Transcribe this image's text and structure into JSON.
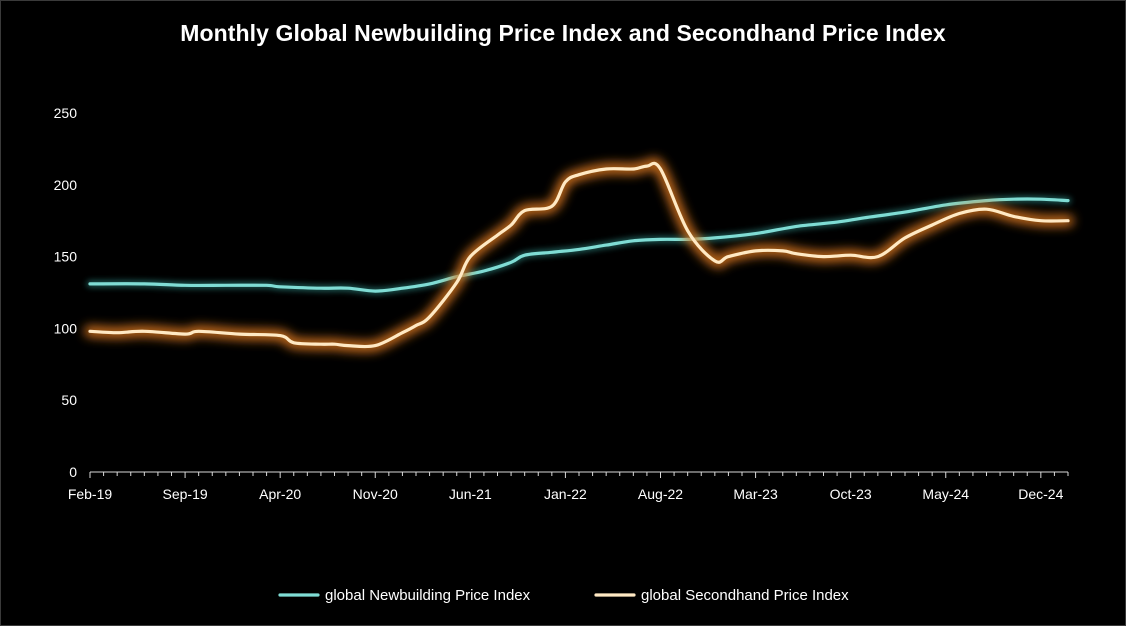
{
  "chart_data": {
    "type": "line",
    "title": "Monthly Global Newbuilding Price Index and Secondhand Price Index",
    "xlabel": "",
    "ylabel": "",
    "ylim": [
      0,
      250
    ],
    "y_ticks": [
      "0",
      "50",
      "100",
      "150",
      "200",
      "250"
    ],
    "x_tick_labels": [
      "Feb-19",
      "Sep-19",
      "Apr-20",
      "Nov-20",
      "Jun-21",
      "Jan-22",
      "Aug-22",
      "Mar-23",
      "Oct-23",
      "May-24",
      "Dec-24"
    ],
    "legend_position": "bottom",
    "grid": false,
    "series": [
      {
        "name": "global Newbuilding Price Index",
        "color": "#7fdcd4",
        "points": [
          [
            "2019-02",
            131
          ],
          [
            "2019-06",
            131
          ],
          [
            "2019-09",
            130
          ],
          [
            "2019-12",
            130
          ],
          [
            "2020-03",
            130
          ],
          [
            "2020-04",
            129
          ],
          [
            "2020-07",
            128
          ],
          [
            "2020-09",
            128
          ],
          [
            "2020-11",
            126
          ],
          [
            "2021-01",
            128
          ],
          [
            "2021-03",
            131
          ],
          [
            "2021-05",
            136
          ],
          [
            "2021-07",
            140
          ],
          [
            "2021-09",
            146
          ],
          [
            "2021-10",
            151
          ],
          [
            "2021-12",
            153
          ],
          [
            "2022-02",
            155
          ],
          [
            "2022-04",
            158
          ],
          [
            "2022-06",
            161
          ],
          [
            "2022-08",
            162
          ],
          [
            "2022-10",
            162
          ],
          [
            "2022-12",
            163
          ],
          [
            "2023-03",
            166
          ],
          [
            "2023-06",
            171
          ],
          [
            "2023-09",
            174
          ],
          [
            "2023-11",
            177
          ],
          [
            "2024-02",
            181
          ],
          [
            "2024-05",
            186
          ],
          [
            "2024-08",
            189
          ],
          [
            "2024-10",
            190
          ],
          [
            "2024-12",
            190
          ],
          [
            "2025-02",
            189
          ]
        ]
      },
      {
        "name": "global Secondhand Price Index",
        "color": "#ffe9c4",
        "points": [
          [
            "2019-02",
            98
          ],
          [
            "2019-04",
            97
          ],
          [
            "2019-06",
            98
          ],
          [
            "2019-09",
            96
          ],
          [
            "2019-10",
            98
          ],
          [
            "2020-01",
            96
          ],
          [
            "2020-04",
            95
          ],
          [
            "2020-05",
            90
          ],
          [
            "2020-07",
            89
          ],
          [
            "2020-08",
            89
          ],
          [
            "2020-09",
            88
          ],
          [
            "2020-11",
            88
          ],
          [
            "2021-01",
            97
          ],
          [
            "2021-02",
            102
          ],
          [
            "2021-03",
            108
          ],
          [
            "2021-05",
            132
          ],
          [
            "2021-06",
            150
          ],
          [
            "2021-08",
            165
          ],
          [
            "2021-09",
            172
          ],
          [
            "2021-10",
            182
          ],
          [
            "2021-12",
            185
          ],
          [
            "2022-01",
            202
          ],
          [
            "2022-02",
            207
          ],
          [
            "2022-04",
            211
          ],
          [
            "2022-06",
            211
          ],
          [
            "2022-07",
            213
          ],
          [
            "2022-08",
            211
          ],
          [
            "2022-10",
            168
          ],
          [
            "2022-12",
            147
          ],
          [
            "2023-01",
            150
          ],
          [
            "2023-03",
            154
          ],
          [
            "2023-05",
            154
          ],
          [
            "2023-06",
            152
          ],
          [
            "2023-08",
            150
          ],
          [
            "2023-10",
            151
          ],
          [
            "2023-12",
            150
          ],
          [
            "2024-02",
            163
          ],
          [
            "2024-04",
            172
          ],
          [
            "2024-06",
            180
          ],
          [
            "2024-08",
            183
          ],
          [
            "2024-10",
            178
          ],
          [
            "2024-12",
            175
          ],
          [
            "2025-02",
            175
          ]
        ]
      }
    ]
  }
}
